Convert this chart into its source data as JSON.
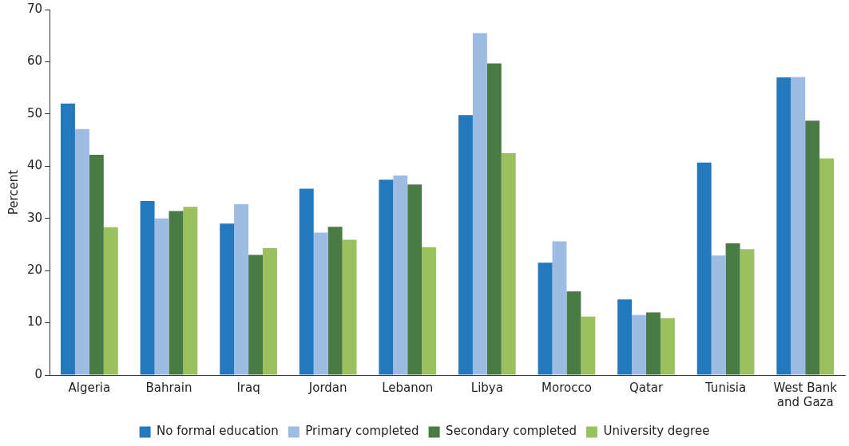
{
  "chart_data": {
    "type": "bar",
    "ylabel": "Percent",
    "categories": [
      "Algeria",
      "Bahrain",
      "Iraq",
      "Jordan",
      "Lebanon",
      "Libya",
      "Morocco",
      "Qatar",
      "Tunisia",
      "West Bank and Gaza"
    ],
    "series": [
      {
        "name": "No formal education",
        "color": "#2479bd",
        "values": [
          52,
          33.3,
          29,
          35.7,
          37.4,
          49.8,
          21.5,
          14.5,
          40.7,
          57
        ]
      },
      {
        "name": "Primary completed",
        "color": "#9dbbe3",
        "values": [
          47.1,
          30,
          32.7,
          27.3,
          38.2,
          65.5,
          25.6,
          11.5,
          22.9,
          57.1
        ]
      },
      {
        "name": "Secondary completed",
        "color": "#4a7b44",
        "values": [
          42.2,
          31.4,
          23,
          28.4,
          36.5,
          59.7,
          16,
          12,
          25.2,
          48.7
        ]
      },
      {
        "name": "University degree",
        "color": "#9bc15e",
        "values": [
          28.3,
          32.2,
          24.3,
          25.9,
          24.5,
          42.5,
          11.2,
          10.9,
          24.1,
          41.5
        ]
      }
    ],
    "ylim": [
      0,
      70
    ],
    "yticks": [
      0,
      10,
      20,
      30,
      40,
      50,
      60,
      70
    ],
    "grid": false,
    "legend": "bottom"
  }
}
